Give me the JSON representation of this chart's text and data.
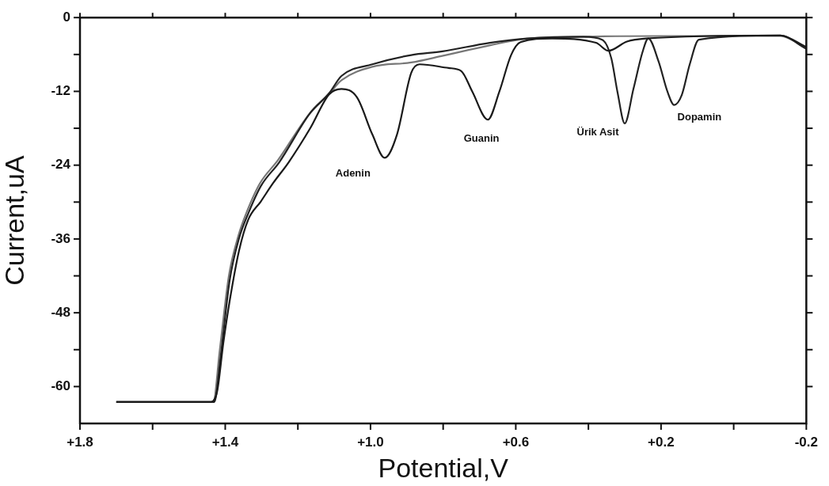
{
  "chart_data": {
    "type": "line",
    "xlabel": "Potential,V",
    "ylabel": "Current,uA",
    "xlim": [
      1.8,
      -0.2
    ],
    "ylim": [
      -66,
      0
    ],
    "xticks": [
      {
        "value": 1.8,
        "label": "+1.8"
      },
      {
        "value": 1.6,
        "label": null
      },
      {
        "value": 1.4,
        "label": "+1.4"
      },
      {
        "value": 1.2,
        "label": null
      },
      {
        "value": 1.0,
        "label": "+1.0"
      },
      {
        "value": 0.8,
        "label": null
      },
      {
        "value": 0.6,
        "label": "+0.6"
      },
      {
        "value": 0.4,
        "label": null
      },
      {
        "value": 0.2,
        "label": "+0.2"
      },
      {
        "value": 0.0,
        "label": null
      },
      {
        "value": -0.2,
        "label": "-0.2"
      }
    ],
    "yticks": [
      0,
      {
        "value": -6,
        "label": null
      },
      -12,
      {
        "value": -18,
        "label": null
      },
      -24,
      {
        "value": -30,
        "label": null
      },
      -36,
      {
        "value": -42,
        "label": null
      },
      -48,
      {
        "value": -54,
        "label": null
      },
      -60
    ],
    "grid": false,
    "legend": false,
    "marker": "none",
    "line_style": "solid",
    "series": [
      {
        "color": "#1a1a1a",
        "x": [
          1.7,
          1.439,
          1.422,
          1.405,
          1.387,
          1.362,
          1.337,
          1.302,
          1.268,
          1.225,
          1.166,
          1.114,
          1.08,
          1.037,
          0.995,
          0.961,
          0.927,
          0.888,
          0.865,
          0.785,
          0.75,
          0.72,
          0.677,
          0.645,
          0.613,
          0.587,
          0.5,
          0.379,
          0.345,
          0.294,
          0.242,
          -0.128,
          -0.2
        ],
        "values": [
          -62.5,
          -62.5,
          -60.7,
          -52.8,
          -45.8,
          -37.9,
          -32.9,
          -29.9,
          -26.9,
          -23.5,
          -18,
          -12.5,
          -11.6,
          -13,
          -19,
          -22.8,
          -19,
          -9,
          -7.6,
          -8.2,
          -8.7,
          -12,
          -16.6,
          -12,
          -6.1,
          -4,
          -3.4,
          -4.1,
          -5.4,
          -3.9,
          -3.4,
          -2.9,
          -4.8
        ]
      },
      {
        "color": "#222222",
        "x": [
          1.7,
          1.43,
          1.413,
          1.388,
          1.362,
          1.337,
          1.302,
          1.251,
          1.166,
          1.114,
          1.08,
          0.995,
          0.888,
          0.802,
          0.672,
          0.569,
          0.414,
          0.362,
          0.337,
          0.32,
          0.3,
          0.276,
          0.251,
          0.235,
          0.207,
          0.182,
          0.164,
          0.143,
          0.121,
          0.096,
          -0.128,
          -0.2
        ],
        "values": [
          -62.5,
          -62.5,
          -55.3,
          -42.8,
          -35.9,
          -31.9,
          -27.4,
          -23.5,
          -15.5,
          -12.3,
          -9.5,
          -7.6,
          -6.1,
          -5.5,
          -4.1,
          -3.4,
          -3.1,
          -3.6,
          -6.6,
          -12.1,
          -17.2,
          -11.6,
          -5.6,
          -3.4,
          -7.1,
          -12.1,
          -14.2,
          -12.6,
          -7.6,
          -3.6,
          -2.9,
          -5.1
        ]
      },
      {
        "color": "#777777",
        "x": [
          1.7,
          1.433,
          1.415,
          1.39,
          1.364,
          1.34,
          1.305,
          1.255,
          1.17,
          1.114,
          1.08,
          0.995,
          0.888,
          0.8,
          0.67,
          0.58,
          0.4,
          0.2,
          -0.128,
          -0.2
        ],
        "values": [
          -62.5,
          -62.5,
          -54,
          -42,
          -35.5,
          -31.5,
          -27,
          -23.2,
          -15.8,
          -12.4,
          -10.2,
          -8,
          -7.3,
          -6.2,
          -4.5,
          -3.5,
          -3.1,
          -3,
          -3,
          -5
        ]
      }
    ],
    "annotations": [
      {
        "text": "Adenin",
        "x": 0.961,
        "y": -22.8
      },
      {
        "text": "Guanin",
        "x": 0.677,
        "y": -16.6
      },
      {
        "text": "Ürik Asit",
        "x": 0.3,
        "y": -17.2
      },
      {
        "text": "Dopamin",
        "x": 0.164,
        "y": -14.2
      }
    ]
  }
}
